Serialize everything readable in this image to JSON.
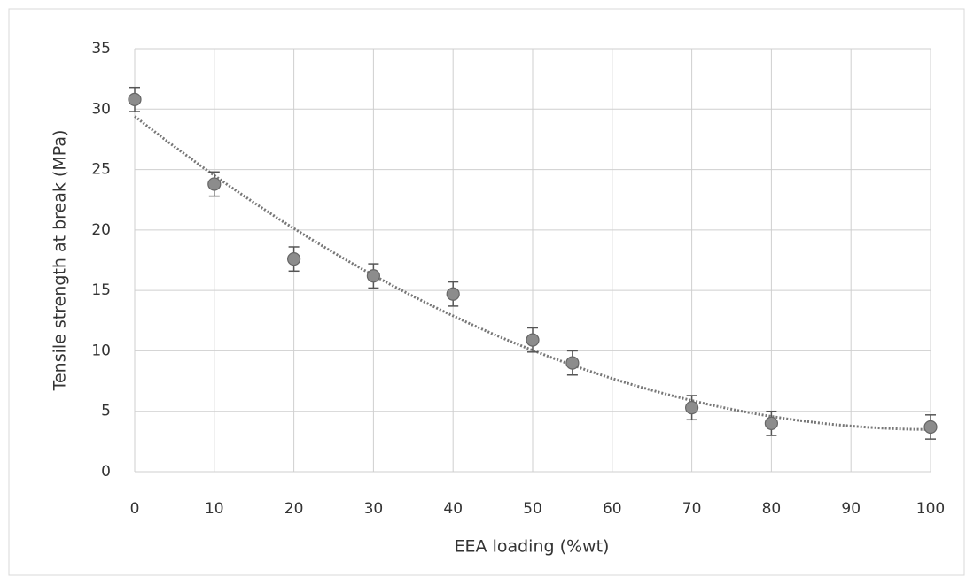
{
  "chart_data": {
    "type": "scatter",
    "x_label": "EEA loading (%wt)",
    "y_label": "Tensile strength at break (MPa)",
    "x": [
      0,
      10,
      20,
      30,
      40,
      50,
      55,
      70,
      80,
      100
    ],
    "values": [
      30.8,
      23.8,
      17.6,
      16.2,
      14.7,
      10.9,
      9.0,
      5.3,
      4.0,
      3.7
    ],
    "errors": [
      1.0,
      1.0,
      1.0,
      1.0,
      1.0,
      1.0,
      1.0,
      1.0,
      1.0,
      1.0
    ],
    "color": "#8c8c8c",
    "trendline": "polynomial-2",
    "xlim": [
      0,
      100
    ],
    "xticks": [
      0,
      10,
      20,
      30,
      40,
      50,
      60,
      70,
      80,
      90,
      100
    ],
    "ylim": [
      0,
      35
    ],
    "yticks": [
      0,
      5,
      10,
      15,
      20,
      25,
      30,
      35
    ],
    "grid": true
  }
}
